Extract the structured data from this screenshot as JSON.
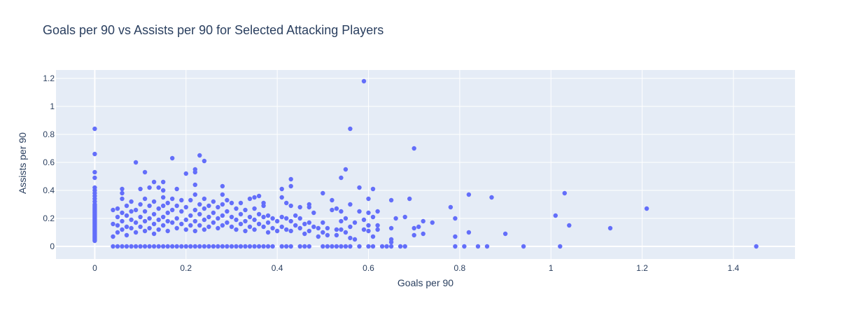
{
  "chart_data": {
    "type": "scatter",
    "title": "Goals per 90 vs Assists per 90 for Selected Attacking Players",
    "xlabel": "Goals per 90",
    "ylabel": "Assists per 90",
    "xlim": [
      -0.085,
      1.535
    ],
    "ylim": [
      -0.09,
      1.26
    ],
    "x_ticks": [
      0,
      0.2,
      0.4,
      0.6,
      0.8,
      1,
      1.2,
      1.4
    ],
    "x_tick_labels": [
      "0",
      "0.2",
      "0.4",
      "0.6",
      "0.8",
      "1",
      "1.2",
      "1.4"
    ],
    "y_ticks": [
      0,
      0.2,
      0.4,
      0.6,
      0.8,
      1,
      1.2
    ],
    "y_tick_labels": [
      "0",
      "0.2",
      "0.4",
      "0.6",
      "0.8",
      "1",
      "1.2"
    ],
    "grid": true,
    "marker_color": "#636efa",
    "plot_bg": "#e5ecf6",
    "points": [
      [
        0,
        0.84
      ],
      [
        0,
        0.66
      ],
      [
        0,
        0.53
      ],
      [
        0,
        0.49
      ],
      [
        0,
        0.42
      ],
      [
        0,
        0.4
      ],
      [
        0,
        0.38
      ],
      [
        0,
        0.36
      ],
      [
        0,
        0.34
      ],
      [
        0,
        0.32
      ],
      [
        0,
        0.3
      ],
      [
        0,
        0.29
      ],
      [
        0,
        0.28
      ],
      [
        0,
        0.27
      ],
      [
        0,
        0.26
      ],
      [
        0,
        0.25
      ],
      [
        0,
        0.24
      ],
      [
        0,
        0.23
      ],
      [
        0,
        0.22
      ],
      [
        0,
        0.21
      ],
      [
        0,
        0.2
      ],
      [
        0,
        0.19
      ],
      [
        0,
        0.18
      ],
      [
        0,
        0.17
      ],
      [
        0,
        0.16
      ],
      [
        0,
        0.15
      ],
      [
        0,
        0.14
      ],
      [
        0,
        0.13
      ],
      [
        0,
        0.12
      ],
      [
        0,
        0.11
      ],
      [
        0,
        0.1
      ],
      [
        0,
        0.09
      ],
      [
        0,
        0.08
      ],
      [
        0,
        0.07
      ],
      [
        0,
        0.06
      ],
      [
        0,
        0.05
      ],
      [
        0,
        0.04
      ],
      [
        0.04,
        0.26
      ],
      [
        0.04,
        0.16
      ],
      [
        0.04,
        0.07
      ],
      [
        0.05,
        0.27
      ],
      [
        0.05,
        0.21
      ],
      [
        0.05,
        0.15
      ],
      [
        0.05,
        0.1
      ],
      [
        0.06,
        0.41
      ],
      [
        0.06,
        0.38
      ],
      [
        0.06,
        0.34
      ],
      [
        0.06,
        0.24
      ],
      [
        0.06,
        0.18
      ],
      [
        0.06,
        0.12
      ],
      [
        0.07,
        0.29
      ],
      [
        0.07,
        0.22
      ],
      [
        0.07,
        0.14
      ],
      [
        0.07,
        0.08
      ],
      [
        0.08,
        0.32
      ],
      [
        0.08,
        0.25
      ],
      [
        0.08,
        0.19
      ],
      [
        0.08,
        0.13
      ],
      [
        0.09,
        0.6
      ],
      [
        0.09,
        0.26
      ],
      [
        0.09,
        0.17
      ],
      [
        0.09,
        0.1
      ],
      [
        0.1,
        0.41
      ],
      [
        0.1,
        0.3
      ],
      [
        0.1,
        0.21
      ],
      [
        0.1,
        0.14
      ],
      [
        0.11,
        0.53
      ],
      [
        0.11,
        0.34
      ],
      [
        0.11,
        0.25
      ],
      [
        0.11,
        0.18
      ],
      [
        0.11,
        0.11
      ],
      [
        0.12,
        0.42
      ],
      [
        0.12,
        0.29
      ],
      [
        0.12,
        0.2
      ],
      [
        0.12,
        0.13
      ],
      [
        0.13,
        0.46
      ],
      [
        0.13,
        0.32
      ],
      [
        0.13,
        0.23
      ],
      [
        0.13,
        0.16
      ],
      [
        0.13,
        0.09
      ],
      [
        0.14,
        0.42
      ],
      [
        0.14,
        0.27
      ],
      [
        0.14,
        0.19
      ],
      [
        0.14,
        0.12
      ],
      [
        0.15,
        0.46
      ],
      [
        0.15,
        0.4
      ],
      [
        0.15,
        0.35
      ],
      [
        0.15,
        0.29
      ],
      [
        0.15,
        0.21
      ],
      [
        0.15,
        0.15
      ],
      [
        0.16,
        0.31
      ],
      [
        0.16,
        0.24
      ],
      [
        0.16,
        0.18
      ],
      [
        0.16,
        0.11
      ],
      [
        0.17,
        0.63
      ],
      [
        0.17,
        0.34
      ],
      [
        0.17,
        0.26
      ],
      [
        0.17,
        0.17
      ],
      [
        0.18,
        0.41
      ],
      [
        0.18,
        0.29
      ],
      [
        0.18,
        0.2
      ],
      [
        0.18,
        0.13
      ],
      [
        0.19,
        0.33
      ],
      [
        0.19,
        0.25
      ],
      [
        0.19,
        0.16
      ],
      [
        0.2,
        0.52
      ],
      [
        0.2,
        0.28
      ],
      [
        0.2,
        0.19
      ],
      [
        0.2,
        0.12
      ],
      [
        0.21,
        0.33
      ],
      [
        0.21,
        0.22
      ],
      [
        0.21,
        0.15
      ],
      [
        0.22,
        0.55
      ],
      [
        0.22,
        0.53
      ],
      [
        0.22,
        0.44
      ],
      [
        0.22,
        0.37
      ],
      [
        0.22,
        0.26
      ],
      [
        0.22,
        0.18
      ],
      [
        0.22,
        0.11
      ],
      [
        0.23,
        0.65
      ],
      [
        0.23,
        0.3
      ],
      [
        0.23,
        0.23
      ],
      [
        0.23,
        0.15
      ],
      [
        0.24,
        0.61
      ],
      [
        0.24,
        0.34
      ],
      [
        0.24,
        0.27
      ],
      [
        0.24,
        0.19
      ],
      [
        0.24,
        0.12
      ],
      [
        0.25,
        0.29
      ],
      [
        0.25,
        0.21
      ],
      [
        0.25,
        0.14
      ],
      [
        0.26,
        0.32
      ],
      [
        0.26,
        0.24
      ],
      [
        0.26,
        0.17
      ],
      [
        0.27,
        0.28
      ],
      [
        0.27,
        0.2
      ],
      [
        0.27,
        0.13
      ],
      [
        0.28,
        0.43
      ],
      [
        0.28,
        0.37
      ],
      [
        0.28,
        0.3
      ],
      [
        0.28,
        0.22
      ],
      [
        0.28,
        0.15
      ],
      [
        0.29,
        0.33
      ],
      [
        0.29,
        0.25
      ],
      [
        0.29,
        0.17
      ],
      [
        0.3,
        0.31
      ],
      [
        0.3,
        0.21
      ],
      [
        0.3,
        0.14
      ],
      [
        0.31,
        0.27
      ],
      [
        0.31,
        0.19
      ],
      [
        0.31,
        0.12
      ],
      [
        0.32,
        0.31
      ],
      [
        0.32,
        0.23
      ],
      [
        0.32,
        0.16
      ],
      [
        0.33,
        0.26
      ],
      [
        0.33,
        0.18
      ],
      [
        0.33,
        0.11
      ],
      [
        0.34,
        0.34
      ],
      [
        0.34,
        0.21
      ],
      [
        0.34,
        0.14
      ],
      [
        0.35,
        0.35
      ],
      [
        0.35,
        0.27
      ],
      [
        0.35,
        0.19
      ],
      [
        0.35,
        0.12
      ],
      [
        0.36,
        0.36
      ],
      [
        0.36,
        0.23
      ],
      [
        0.36,
        0.16
      ],
      [
        0.37,
        0.31
      ],
      [
        0.37,
        0.29
      ],
      [
        0.37,
        0.21
      ],
      [
        0.37,
        0.14
      ],
      [
        0.38,
        0.22
      ],
      [
        0.38,
        0.17
      ],
      [
        0.38,
        0.1
      ],
      [
        0.39,
        0.2
      ],
      [
        0.39,
        0.13
      ],
      [
        0.4,
        0.18
      ],
      [
        0.4,
        0.11
      ],
      [
        0.41,
        0.41
      ],
      [
        0.41,
        0.35
      ],
      [
        0.41,
        0.21
      ],
      [
        0.41,
        0.14
      ],
      [
        0.42,
        0.31
      ],
      [
        0.42,
        0.2
      ],
      [
        0.42,
        0.12
      ],
      [
        0.43,
        0.48
      ],
      [
        0.43,
        0.43
      ],
      [
        0.43,
        0.29
      ],
      [
        0.43,
        0.18
      ],
      [
        0.43,
        0.11
      ],
      [
        0.44,
        0.22
      ],
      [
        0.44,
        0.15
      ],
      [
        0.45,
        0.28
      ],
      [
        0.45,
        0.2
      ],
      [
        0.45,
        0.13
      ],
      [
        0.46,
        0.16
      ],
      [
        0.46,
        0.09
      ],
      [
        0.47,
        0.3
      ],
      [
        0.47,
        0.28
      ],
      [
        0.47,
        0.17
      ],
      [
        0.47,
        0.11
      ],
      [
        0.48,
        0.24
      ],
      [
        0.48,
        0.14
      ],
      [
        0.49,
        0.13
      ],
      [
        0.49,
        0.07
      ],
      [
        0.5,
        0.38
      ],
      [
        0.5,
        0.17
      ],
      [
        0.5,
        0.1
      ],
      [
        0.51,
        0.13
      ],
      [
        0.51,
        0.08
      ],
      [
        0.52,
        0.33
      ],
      [
        0.52,
        0.26
      ],
      [
        0.53,
        0.27
      ],
      [
        0.53,
        0.12
      ],
      [
        0.53,
        0.08
      ],
      [
        0.54,
        0.49
      ],
      [
        0.54,
        0.25
      ],
      [
        0.54,
        0.18
      ],
      [
        0.54,
        0.12
      ],
      [
        0.55,
        0.55
      ],
      [
        0.55,
        0.2
      ],
      [
        0.55,
        0.1
      ],
      [
        0.56,
        0.84
      ],
      [
        0.56,
        0.3
      ],
      [
        0.56,
        0.14
      ],
      [
        0.56,
        0.06
      ],
      [
        0.57,
        0.17
      ],
      [
        0.57,
        0.05
      ],
      [
        0.58,
        0.42
      ],
      [
        0.58,
        0.25
      ],
      [
        0.59,
        1.18
      ],
      [
        0.59,
        0.19
      ],
      [
        0.59,
        0.12
      ],
      [
        0.6,
        0.34
      ],
      [
        0.6,
        0.24
      ],
      [
        0.6,
        0.15
      ],
      [
        0.6,
        0.11
      ],
      [
        0.61,
        0.41
      ],
      [
        0.61,
        0.21
      ],
      [
        0.61,
        0.07
      ],
      [
        0.62,
        0.25
      ],
      [
        0.62,
        0.15
      ],
      [
        0.62,
        0.12
      ],
      [
        0.65,
        0.33
      ],
      [
        0.65,
        0.13
      ],
      [
        0.65,
        0.05
      ],
      [
        0.65,
        0.03
      ],
      [
        0.66,
        0.2
      ],
      [
        0.68,
        0.21
      ],
      [
        0.69,
        0.34
      ],
      [
        0.7,
        0.7
      ],
      [
        0.7,
        0.13
      ],
      [
        0.7,
        0.08
      ],
      [
        0.71,
        0.14
      ],
      [
        0.72,
        0.18
      ],
      [
        0.72,
        0.09
      ],
      [
        0.74,
        0.17
      ],
      [
        0.78,
        0.28
      ],
      [
        0.79,
        0.2
      ],
      [
        0.79,
        0.07
      ],
      [
        0.82,
        0.37
      ],
      [
        0.82,
        0.1
      ],
      [
        0.87,
        0.35
      ],
      [
        0.9,
        0.09
      ],
      [
        1.01,
        0.22
      ],
      [
        1.03,
        0.38
      ],
      [
        1.04,
        0.15
      ],
      [
        1.13,
        0.13
      ],
      [
        1.21,
        0.27
      ],
      [
        0.04,
        0
      ],
      [
        0.05,
        0
      ],
      [
        0.06,
        0
      ],
      [
        0.07,
        0
      ],
      [
        0.08,
        0
      ],
      [
        0.09,
        0
      ],
      [
        0.1,
        0
      ],
      [
        0.11,
        0
      ],
      [
        0.12,
        0
      ],
      [
        0.13,
        0
      ],
      [
        0.14,
        0
      ],
      [
        0.15,
        0
      ],
      [
        0.16,
        0
      ],
      [
        0.17,
        0
      ],
      [
        0.18,
        0
      ],
      [
        0.19,
        0
      ],
      [
        0.2,
        0
      ],
      [
        0.21,
        0
      ],
      [
        0.22,
        0
      ],
      [
        0.23,
        0
      ],
      [
        0.24,
        0
      ],
      [
        0.25,
        0
      ],
      [
        0.26,
        0
      ],
      [
        0.27,
        0
      ],
      [
        0.28,
        0
      ],
      [
        0.29,
        0
      ],
      [
        0.3,
        0
      ],
      [
        0.31,
        0
      ],
      [
        0.32,
        0
      ],
      [
        0.33,
        0
      ],
      [
        0.34,
        0
      ],
      [
        0.35,
        0
      ],
      [
        0.36,
        0
      ],
      [
        0.37,
        0
      ],
      [
        0.38,
        0
      ],
      [
        0.39,
        0
      ],
      [
        0.41,
        0
      ],
      [
        0.42,
        0
      ],
      [
        0.43,
        0
      ],
      [
        0.45,
        0
      ],
      [
        0.46,
        0
      ],
      [
        0.47,
        0
      ],
      [
        0.5,
        0
      ],
      [
        0.51,
        0
      ],
      [
        0.52,
        0
      ],
      [
        0.53,
        0
      ],
      [
        0.54,
        0
      ],
      [
        0.55,
        0
      ],
      [
        0.56,
        0
      ],
      [
        0.58,
        0
      ],
      [
        0.6,
        0
      ],
      [
        0.61,
        0
      ],
      [
        0.63,
        0
      ],
      [
        0.64,
        0
      ],
      [
        0.65,
        0
      ],
      [
        0.67,
        0
      ],
      [
        0.68,
        0
      ],
      [
        0.79,
        0
      ],
      [
        0.81,
        0
      ],
      [
        0.84,
        0
      ],
      [
        0.86,
        0
      ],
      [
        0.94,
        0
      ],
      [
        1.02,
        0
      ],
      [
        1.45,
        0
      ]
    ]
  }
}
